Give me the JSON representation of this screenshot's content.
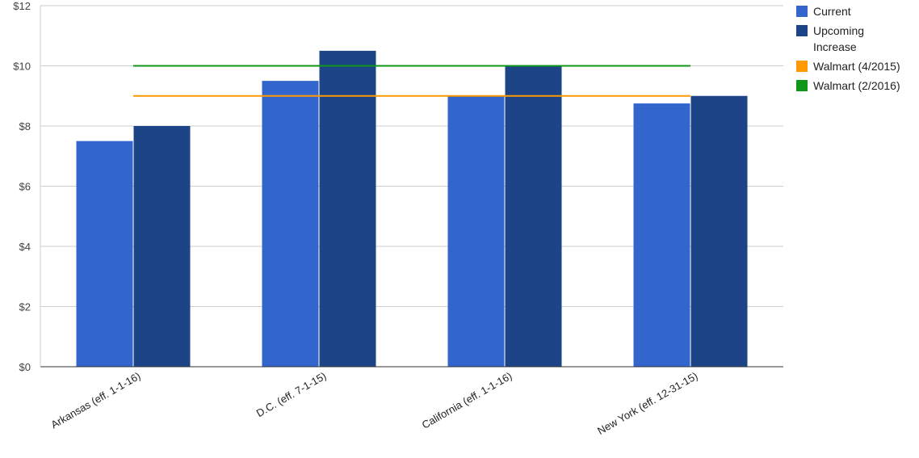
{
  "chart_data": {
    "type": "bar",
    "categories": [
      "Arkansas (eff. 1-1-16)",
      "D.C. (eff. 7-1-15)",
      "California (eff. 1-1-16)",
      "New York (eff. 12-31-15)"
    ],
    "series": [
      {
        "name": "Current",
        "color": "#3366cc",
        "values": [
          7.5,
          9.5,
          9.0,
          8.75
        ]
      },
      {
        "name": "Upcoming Increase",
        "color": "#1e4488",
        "values": [
          8.0,
          10.5,
          10.0,
          9.0
        ]
      }
    ],
    "reference_lines": [
      {
        "name": "Walmart (4/2015)",
        "color": "#ff9900",
        "value": 9.0
      },
      {
        "name": "Walmart (2/2016)",
        "color": "#109618",
        "value": 10.0
      }
    ],
    "ylim": [
      0,
      12
    ],
    "yticks": [
      0,
      2,
      4,
      6,
      8,
      10,
      12
    ],
    "ytick_labels": [
      "$0",
      "$2",
      "$4",
      "$6",
      "$8",
      "$10",
      "$12"
    ],
    "grid": true,
    "legend_position": "right"
  },
  "legend": {
    "items": [
      {
        "label_lines": [
          "Current"
        ],
        "color": "#3366cc"
      },
      {
        "label_lines": [
          "Upcoming",
          "Increase"
        ],
        "color": "#1e4488"
      },
      {
        "label_lines": [
          "Walmart (4/2015)"
        ],
        "color": "#ff9900"
      },
      {
        "label_lines": [
          "Walmart (2/2016)"
        ],
        "color": "#109618"
      }
    ]
  }
}
